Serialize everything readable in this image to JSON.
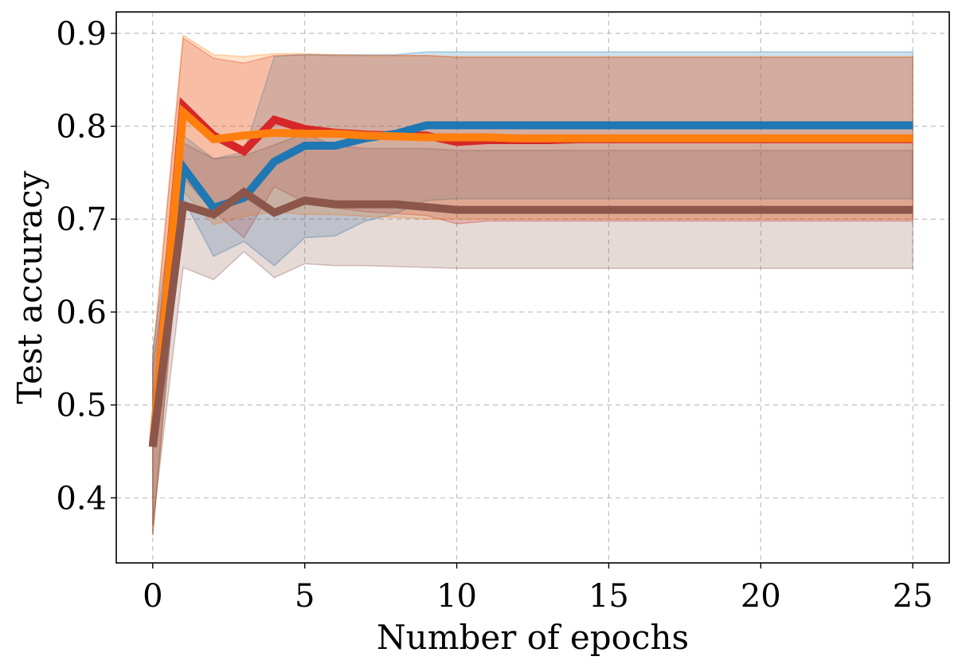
{
  "chart_data": {
    "type": "line",
    "title": "",
    "xlabel": "Number of epochs",
    "ylabel": "Test accuracy",
    "xlim": [
      -1.2,
      26.2
    ],
    "ylim": [
      0.33,
      0.923
    ],
    "xticks": [
      0,
      5,
      10,
      15,
      20,
      25
    ],
    "yticks": [
      0.4,
      0.5,
      0.6,
      0.7,
      0.8,
      0.9
    ],
    "xtick_labels": [
      "0",
      "5",
      "10",
      "15",
      "20",
      "25"
    ],
    "ytick_labels": [
      "0.4",
      "0.5",
      "0.6",
      "0.7",
      "0.8",
      "0.9"
    ],
    "grid": true,
    "legend": "none",
    "x": [
      0,
      1,
      2,
      3,
      4,
      5,
      6,
      7,
      8,
      9,
      10,
      11,
      12,
      13,
      14,
      15,
      16,
      17,
      18,
      19,
      20,
      21,
      22,
      23,
      24,
      25
    ],
    "series": [
      {
        "color": "#d62728",
        "values": [
          0.455,
          0.822,
          0.79,
          0.773,
          0.807,
          0.797,
          0.793,
          0.791,
          0.79,
          0.79,
          0.783,
          0.785,
          0.785,
          0.785,
          0.786,
          0.786,
          0.786,
          0.786,
          0.786,
          0.786,
          0.786,
          0.786,
          0.786,
          0.786,
          0.786,
          0.786
        ],
        "upper": [
          0.55,
          0.895,
          0.873,
          0.868,
          0.876,
          0.877,
          0.876,
          0.876,
          0.876,
          0.876,
          0.874,
          0.874,
          0.874,
          0.874,
          0.874,
          0.874,
          0.874,
          0.874,
          0.874,
          0.874,
          0.874,
          0.874,
          0.874,
          0.874,
          0.874,
          0.874
        ],
        "lower": [
          0.36,
          0.745,
          0.708,
          0.68,
          0.735,
          0.718,
          0.712,
          0.708,
          0.706,
          0.704,
          0.695,
          0.698,
          0.698,
          0.698,
          0.698,
          0.698,
          0.698,
          0.698,
          0.698,
          0.698,
          0.698,
          0.698,
          0.698,
          0.698,
          0.698,
          0.698
        ]
      },
      {
        "color": "#1f77b4",
        "values": [
          0.455,
          0.756,
          0.712,
          0.723,
          0.762,
          0.779,
          0.779,
          0.787,
          0.792,
          0.801,
          0.801,
          0.801,
          0.801,
          0.801,
          0.801,
          0.801,
          0.801,
          0.801,
          0.801,
          0.801,
          0.801,
          0.801,
          0.801,
          0.801,
          0.801,
          0.801
        ],
        "upper": [
          0.56,
          0.79,
          0.765,
          0.772,
          0.875,
          0.877,
          0.877,
          0.877,
          0.877,
          0.88,
          0.88,
          0.88,
          0.88,
          0.88,
          0.88,
          0.88,
          0.88,
          0.88,
          0.88,
          0.88,
          0.88,
          0.88,
          0.88,
          0.88,
          0.88,
          0.88
        ],
        "lower": [
          0.36,
          0.722,
          0.66,
          0.676,
          0.65,
          0.68,
          0.682,
          0.698,
          0.706,
          0.72,
          0.722,
          0.722,
          0.722,
          0.722,
          0.722,
          0.722,
          0.722,
          0.722,
          0.722,
          0.722,
          0.722,
          0.722,
          0.722,
          0.722,
          0.722,
          0.722
        ]
      },
      {
        "color": "#ff7f0e",
        "values": [
          0.455,
          0.815,
          0.786,
          0.79,
          0.793,
          0.792,
          0.792,
          0.79,
          0.789,
          0.788,
          0.788,
          0.788,
          0.787,
          0.787,
          0.787,
          0.787,
          0.787,
          0.787,
          0.787,
          0.787,
          0.787,
          0.787,
          0.787,
          0.787,
          0.787,
          0.787
        ],
        "upper": [
          0.55,
          0.898,
          0.877,
          0.875,
          0.878,
          0.878,
          0.877,
          0.876,
          0.876,
          0.876,
          0.875,
          0.875,
          0.875,
          0.875,
          0.875,
          0.875,
          0.875,
          0.875,
          0.875,
          0.875,
          0.875,
          0.875,
          0.875,
          0.875,
          0.875,
          0.875
        ],
        "lower": [
          0.36,
          0.73,
          0.694,
          0.703,
          0.708,
          0.705,
          0.705,
          0.703,
          0.702,
          0.7,
          0.7,
          0.7,
          0.7,
          0.7,
          0.7,
          0.7,
          0.7,
          0.7,
          0.7,
          0.7,
          0.7,
          0.7,
          0.7,
          0.7,
          0.7,
          0.7
        ]
      },
      {
        "color": "#8c564b",
        "values": [
          0.455,
          0.715,
          0.705,
          0.729,
          0.707,
          0.72,
          0.716,
          0.716,
          0.716,
          0.713,
          0.71,
          0.71,
          0.71,
          0.71,
          0.71,
          0.71,
          0.71,
          0.71,
          0.71,
          0.71,
          0.71,
          0.71,
          0.71,
          0.71,
          0.71,
          0.71
        ],
        "upper": [
          0.54,
          0.782,
          0.765,
          0.768,
          0.78,
          0.792,
          0.779,
          0.776,
          0.776,
          0.776,
          0.774,
          0.774,
          0.774,
          0.774,
          0.774,
          0.774,
          0.774,
          0.774,
          0.774,
          0.774,
          0.774,
          0.774,
          0.774,
          0.774,
          0.774,
          0.774
        ],
        "lower": [
          0.37,
          0.648,
          0.635,
          0.665,
          0.637,
          0.652,
          0.65,
          0.65,
          0.649,
          0.648,
          0.647,
          0.647,
          0.647,
          0.647,
          0.647,
          0.647,
          0.647,
          0.647,
          0.647,
          0.647,
          0.647,
          0.647,
          0.647,
          0.647,
          0.647,
          0.647
        ]
      }
    ]
  }
}
